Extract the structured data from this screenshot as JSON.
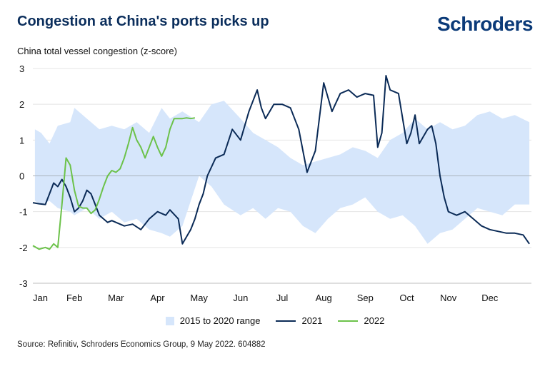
{
  "header": {
    "title": "Congestion at China's ports picks up",
    "brand": "Schroders",
    "ylabel": "China total vessel congestion (z-score)"
  },
  "footer": {
    "source": "Source: Refinitiv, Schroders Economics Group, 9 May 2022. 604882"
  },
  "chart_data": {
    "type": "line",
    "title": "Congestion at China's ports picks up",
    "ylabel": "China total vessel congestion (z-score)",
    "xlabel": "",
    "ylim": [
      -3,
      3
    ],
    "y_ticks": [
      3,
      2,
      1,
      0,
      -1,
      -2,
      -3
    ],
    "x_ticks": [
      "Jan",
      "Feb",
      "Mar",
      "Apr",
      "May",
      "Jun",
      "Jul",
      "Aug",
      "Sep",
      "Oct",
      "Nov",
      "Dec"
    ],
    "grid": true,
    "legend_position": "bottom",
    "colors": {
      "range": "#d6e6fb",
      "2021": "#0b2b57",
      "2022": "#6cc24a"
    },
    "range_band": {
      "name": "2015 to 2020 range",
      "x": [
        0.05,
        0.2,
        0.4,
        0.6,
        0.9,
        1.0,
        1.3,
        1.6,
        1.9,
        2.2,
        2.5,
        2.8,
        3.1,
        3.3,
        3.6,
        4.0,
        4.3,
        4.6,
        5.0,
        5.3,
        5.6,
        5.9,
        6.2,
        6.5,
        6.8,
        7.1,
        7.4,
        7.7,
        8.0,
        8.3,
        8.6,
        8.9,
        9.2,
        9.5,
        9.8,
        10.1,
        10.4,
        10.7,
        11.0,
        11.3,
        11.6,
        11.95
      ],
      "upper": [
        1.3,
        1.2,
        0.9,
        1.4,
        1.5,
        1.9,
        1.6,
        1.3,
        1.4,
        1.3,
        1.5,
        1.2,
        1.9,
        1.6,
        1.8,
        1.5,
        2.0,
        2.1,
        1.6,
        1.2,
        1.0,
        0.8,
        0.5,
        0.3,
        0.4,
        0.5,
        0.6,
        0.8,
        0.7,
        0.5,
        1.0,
        1.2,
        1.6,
        1.3,
        1.5,
        1.3,
        1.4,
        1.7,
        1.8,
        1.6,
        1.7,
        1.5
      ],
      "lower": [
        -0.7,
        -0.8,
        -0.7,
        -0.9,
        -1.0,
        -1.1,
        -0.9,
        -1.2,
        -1.0,
        -1.3,
        -1.2,
        -1.5,
        -1.6,
        -1.7,
        -1.4,
        0.0,
        -0.3,
        -0.8,
        -1.1,
        -0.9,
        -1.2,
        -0.9,
        -1.0,
        -1.4,
        -1.6,
        -1.2,
        -0.9,
        -0.8,
        -0.6,
        -1.0,
        -1.2,
        -1.1,
        -1.4,
        -1.9,
        -1.6,
        -1.5,
        -1.2,
        -0.9,
        -1.0,
        -1.1,
        -0.8,
        -0.8
      ]
    },
    "series": [
      {
        "name": "2021",
        "x": [
          0.0,
          0.15,
          0.3,
          0.4,
          0.5,
          0.6,
          0.7,
          0.8,
          0.9,
          1.0,
          1.1,
          1.2,
          1.3,
          1.4,
          1.5,
          1.6,
          1.7,
          1.8,
          1.9,
          2.0,
          2.2,
          2.4,
          2.6,
          2.8,
          3.0,
          3.2,
          3.3,
          3.5,
          3.6,
          3.8,
          3.9,
          4.0,
          4.1,
          4.2,
          4.4,
          4.6,
          4.8,
          5.0,
          5.2,
          5.4,
          5.5,
          5.6,
          5.8,
          6.0,
          6.2,
          6.4,
          6.6,
          6.8,
          7.0,
          7.2,
          7.4,
          7.6,
          7.8,
          8.0,
          8.2,
          8.3,
          8.4,
          8.5,
          8.6,
          8.8,
          9.0,
          9.1,
          9.2,
          9.3,
          9.5,
          9.6,
          9.7,
          9.8,
          9.9,
          10.0,
          10.2,
          10.4,
          10.6,
          10.8,
          11.0,
          11.2,
          11.4,
          11.6,
          11.8,
          11.95
        ],
        "values": [
          -0.75,
          -0.78,
          -0.8,
          -0.5,
          -0.2,
          -0.3,
          -0.1,
          -0.3,
          -0.6,
          -1.0,
          -0.9,
          -0.7,
          -0.4,
          -0.5,
          -0.8,
          -1.1,
          -1.2,
          -1.3,
          -1.25,
          -1.3,
          -1.4,
          -1.35,
          -1.5,
          -1.2,
          -1.0,
          -1.1,
          -0.95,
          -1.2,
          -1.9,
          -1.5,
          -1.2,
          -0.8,
          -0.5,
          0.0,
          0.5,
          0.6,
          1.3,
          1.0,
          1.8,
          2.4,
          1.9,
          1.6,
          2.0,
          2.0,
          1.9,
          1.3,
          0.1,
          0.7,
          2.6,
          1.8,
          2.3,
          2.4,
          2.2,
          2.3,
          2.25,
          0.8,
          1.2,
          2.8,
          2.4,
          2.3,
          0.9,
          1.2,
          1.7,
          0.9,
          1.3,
          1.4,
          0.9,
          0.0,
          -0.6,
          -1.0,
          -1.1,
          -1.0,
          -1.2,
          -1.4,
          -1.5,
          -1.55,
          -1.6,
          -1.6,
          -1.65,
          -1.9
        ]
      },
      {
        "name": "2022",
        "x": [
          0.0,
          0.15,
          0.3,
          0.4,
          0.5,
          0.6,
          0.7,
          0.8,
          0.9,
          1.0,
          1.1,
          1.2,
          1.3,
          1.4,
          1.5,
          1.6,
          1.7,
          1.8,
          1.9,
          2.0,
          2.1,
          2.2,
          2.3,
          2.4,
          2.5,
          2.6,
          2.7,
          2.8,
          2.9,
          3.0,
          3.1,
          3.2,
          3.3,
          3.4,
          3.5,
          3.6,
          3.7,
          3.8,
          3.9
        ],
        "values": [
          -1.95,
          -2.05,
          -2.0,
          -2.05,
          -1.9,
          -2.0,
          -0.8,
          0.5,
          0.3,
          -0.4,
          -0.85,
          -0.9,
          -0.9,
          -1.05,
          -0.95,
          -0.65,
          -0.3,
          0.0,
          0.15,
          0.1,
          0.2,
          0.5,
          0.9,
          1.35,
          1.0,
          0.8,
          0.5,
          0.8,
          1.1,
          0.8,
          0.55,
          0.8,
          1.3,
          1.6,
          1.6,
          1.6,
          1.62,
          1.6,
          1.62
        ]
      }
    ],
    "legend": [
      "2015 to 2020 range",
      "2021",
      "2022"
    ]
  }
}
